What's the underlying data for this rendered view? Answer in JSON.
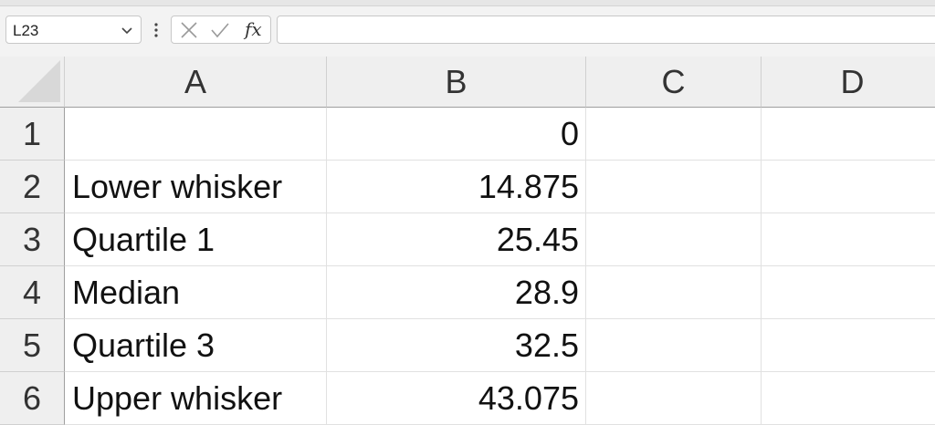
{
  "formula_bar": {
    "name_box": "L23",
    "formula": "",
    "icons": [
      "chevron-down-icon",
      "more-vertical-icon",
      "cancel-icon",
      "enter-icon",
      "function-icon"
    ],
    "fx_label": "fx"
  },
  "columns": [
    "A",
    "B",
    "C",
    "D"
  ],
  "rows": [
    {
      "num": "1",
      "A": "",
      "B": "0",
      "C": "",
      "D": ""
    },
    {
      "num": "2",
      "A": "Lower whisker",
      "B": "14.875",
      "C": "",
      "D": ""
    },
    {
      "num": "3",
      "A": "Quartile 1",
      "B": "25.45",
      "C": "",
      "D": ""
    },
    {
      "num": "4",
      "A": "Median",
      "B": "28.9",
      "C": "",
      "D": ""
    },
    {
      "num": "5",
      "A": "Quartile 3",
      "B": "32.5",
      "C": "",
      "D": ""
    },
    {
      "num": "6",
      "A": "Upper whisker",
      "B": "43.075",
      "C": "",
      "D": ""
    }
  ]
}
